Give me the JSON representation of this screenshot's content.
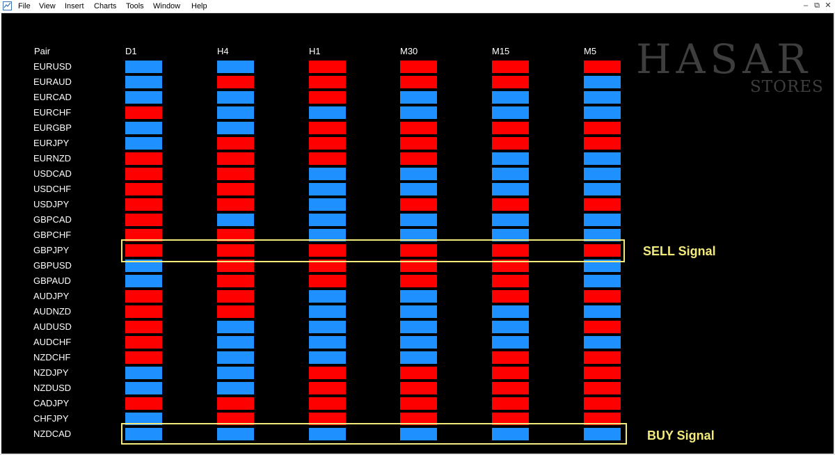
{
  "menu": [
    "File",
    "View",
    "Insert",
    "Charts",
    "Tools",
    "Window",
    "Help"
  ],
  "window_controls": [
    "–",
    "⧉",
    "✕"
  ],
  "watermark": {
    "main": "HASAR",
    "sub": "STORES"
  },
  "header": {
    "pair": "Pair",
    "timeframes": [
      "D1",
      "H4",
      "H1",
      "M30",
      "M15",
      "M5"
    ]
  },
  "colors": {
    "buy": "#1e90ff",
    "sell": "#ff0000",
    "highlight": "#f2ea7b"
  },
  "rows": [
    {
      "pair": "EURUSD",
      "signals": [
        "buy",
        "buy",
        "sell",
        "sell",
        "sell",
        "sell"
      ]
    },
    {
      "pair": "EURAUD",
      "signals": [
        "buy",
        "sell",
        "sell",
        "sell",
        "sell",
        "buy"
      ]
    },
    {
      "pair": "EURCAD",
      "signals": [
        "buy",
        "buy",
        "sell",
        "buy",
        "buy",
        "buy"
      ]
    },
    {
      "pair": "EURCHF",
      "signals": [
        "sell",
        "buy",
        "buy",
        "buy",
        "buy",
        "buy"
      ]
    },
    {
      "pair": "EURGBP",
      "signals": [
        "buy",
        "buy",
        "sell",
        "sell",
        "sell",
        "sell"
      ]
    },
    {
      "pair": "EURJPY",
      "signals": [
        "buy",
        "sell",
        "sell",
        "sell",
        "sell",
        "sell"
      ]
    },
    {
      "pair": "EURNZD",
      "signals": [
        "sell",
        "sell",
        "sell",
        "sell",
        "buy",
        "buy"
      ]
    },
    {
      "pair": "USDCAD",
      "signals": [
        "sell",
        "sell",
        "buy",
        "buy",
        "buy",
        "buy"
      ]
    },
    {
      "pair": "USDCHF",
      "signals": [
        "sell",
        "sell",
        "buy",
        "buy",
        "buy",
        "buy"
      ]
    },
    {
      "pair": "USDJPY",
      "signals": [
        "sell",
        "sell",
        "buy",
        "sell",
        "sell",
        "sell"
      ]
    },
    {
      "pair": "GBPCAD",
      "signals": [
        "sell",
        "buy",
        "buy",
        "buy",
        "buy",
        "buy"
      ]
    },
    {
      "pair": "GBPCHF",
      "signals": [
        "sell",
        "sell",
        "buy",
        "buy",
        "buy",
        "buy"
      ]
    },
    {
      "pair": "GBPJPY",
      "signals": [
        "sell",
        "sell",
        "sell",
        "sell",
        "sell",
        "sell"
      ]
    },
    {
      "pair": "GBPUSD",
      "signals": [
        "buy",
        "sell",
        "sell",
        "sell",
        "sell",
        "buy"
      ]
    },
    {
      "pair": "GBPAUD",
      "signals": [
        "buy",
        "sell",
        "sell",
        "sell",
        "sell",
        "buy"
      ]
    },
    {
      "pair": "AUDJPY",
      "signals": [
        "sell",
        "sell",
        "buy",
        "buy",
        "sell",
        "sell"
      ]
    },
    {
      "pair": "AUDNZD",
      "signals": [
        "sell",
        "sell",
        "buy",
        "buy",
        "buy",
        "buy"
      ]
    },
    {
      "pair": "AUDUSD",
      "signals": [
        "sell",
        "buy",
        "buy",
        "buy",
        "buy",
        "sell"
      ]
    },
    {
      "pair": "AUDCHF",
      "signals": [
        "sell",
        "buy",
        "buy",
        "buy",
        "buy",
        "buy"
      ]
    },
    {
      "pair": "NZDCHF",
      "signals": [
        "sell",
        "buy",
        "buy",
        "buy",
        "sell",
        "sell"
      ]
    },
    {
      "pair": "NZDJPY",
      "signals": [
        "buy",
        "buy",
        "sell",
        "sell",
        "sell",
        "sell"
      ]
    },
    {
      "pair": "NZDUSD",
      "signals": [
        "buy",
        "buy",
        "sell",
        "sell",
        "sell",
        "sell"
      ]
    },
    {
      "pair": "CADJPY",
      "signals": [
        "sell",
        "sell",
        "sell",
        "sell",
        "sell",
        "sell"
      ]
    },
    {
      "pair": "CHFJPY",
      "signals": [
        "buy",
        "sell",
        "sell",
        "sell",
        "sell",
        "sell"
      ]
    },
    {
      "pair": "NZDCAD",
      "signals": [
        "buy",
        "buy",
        "buy",
        "buy",
        "buy",
        "buy"
      ]
    }
  ],
  "annotations": {
    "sell": "SELL Signal",
    "buy": "BUY Signal"
  }
}
